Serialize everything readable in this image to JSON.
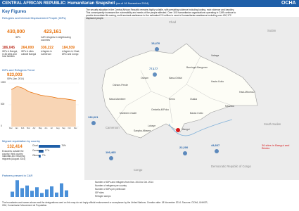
{
  "header": {
    "title": "CENTRAL AFRICAN REPUBLIC: Humanitarian Snapshot",
    "date": "(as of 18 November 2014)",
    "logo": "OCHA"
  },
  "key_figures": {
    "title": "Key Figures",
    "section": "Refugees and Internal Displacement People (IDPs)",
    "idps": "430,000",
    "idps_label": "IDPs",
    "refugees": "423,161",
    "refugees_label": "CAR refugees in neighbouring countries",
    "bangui": "186,045",
    "bangui_label": "IDPs in Bangui, in 36 sites and host families",
    "sites": "264,000",
    "sites_label": "IDPs in sites outside Bangui",
    "host": "336,222",
    "host_label": "refugees in Cameroon",
    "chad": "184,939",
    "chad_label": "refugees in Chad, DRC and Congo"
  },
  "trend": {
    "title": "IDPs and Refugees Trend",
    "total": "923,003",
    "total_label": "IDPs (Jan. 2014)",
    "months": [
      "Dec",
      "Jan",
      "Feb",
      "Mar",
      "Apr",
      "May",
      "Jun",
      "Jul",
      "Aug",
      "Sep",
      "Oct",
      "Nov"
    ],
    "values": [
      850,
      923,
      880,
      800,
      760,
      720,
      700,
      680,
      650,
      640,
      620,
      600
    ],
    "ylim": [
      0,
      1000
    ],
    "yticks": [
      0,
      500,
      1000
    ]
  },
  "migrants": {
    "title": "Migrant repatriation by country",
    "total": "132,414",
    "total_label": "Evacuees outside the country, third country nationals and returning migrants (August 2014)",
    "categories": [
      "Chad",
      "Cameroon",
      "Others"
    ],
    "values": [
      76,
      17,
      7
    ],
    "value_labels": [
      "76%",
      "17%",
      "7%"
    ]
  },
  "partners": {
    "title": "Partners present in CAR",
    "values": [
      12,
      38,
      20,
      26,
      14,
      22,
      9,
      17,
      24,
      10,
      31,
      15
    ]
  },
  "summary": "The security situation in the Central African Republic remains highly volatile, with persisting violence including looting, mob violence and banditry. This consequently increases the vulnerability and needs of the people affected. Over 100 humanitarian organizations operating in CAR continue to provide immediate life-saving, multi-sectoral assistance to the estimated 2.5 million in need of humanitarian assistance including over 420,172 displaced people.",
  "map": {
    "countries": [
      "Chad",
      "Sudan",
      "South Sudan",
      "Cameroon",
      "Congo",
      "Democratic Republic of Congo"
    ],
    "prefectures": [
      "Vakaga",
      "Bamingui-Bangoran",
      "Haute-Kotto",
      "Ouham",
      "Ouham-Pende",
      "Nana-Gribizi",
      "Kemo",
      "Ouaka",
      "Mbomou",
      "Haut-Mbomou",
      "Basse-Kotto",
      "Ombella-M'Poko",
      "Lobaye",
      "Mambere-Kadei",
      "Nana-Mambere",
      "Sangha-Mbaere",
      "Bangui"
    ],
    "refugees": [
      {
        "where": "Chad",
        "value": "15,470"
      },
      {
        "where": "Ouham",
        "value": "77,177"
      },
      {
        "where": "Cameroon",
        "value": "132,621"
      },
      {
        "where": "Congo",
        "value": "106,465"
      },
      {
        "where": "DRC",
        "value": "22,200"
      },
      {
        "where": "DRC east",
        "value": "44,667"
      }
    ],
    "sites_note": "36 sites in Bangui and Bimbo"
  },
  "legend": [
    "Number of IDPs and refugees from Nov. 2013 to Oct. 2014",
    "Number of refugees per country",
    "Number of IDPs per prefecture",
    "IDP sites",
    "Refugee camps"
  ],
  "footer": "The boundaries and names shown and the designations used on this map do not imply official endorsement or acceptance by the United Nations. Creation date: 18 November 2014. Sources: OCHA, UNHCR, IOM, Commission Mouvement de Population."
}
